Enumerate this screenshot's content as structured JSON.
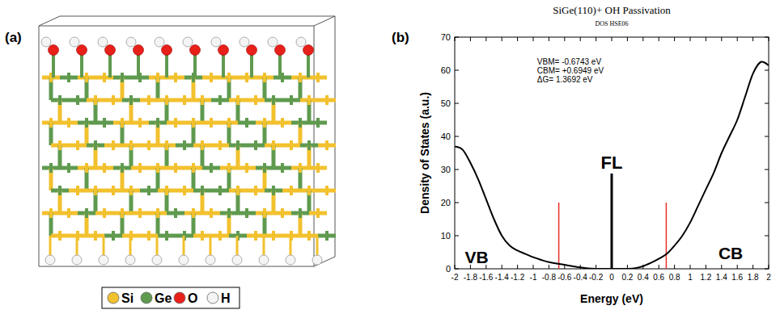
{
  "structure": {
    "label": "(a)",
    "legend": [
      {
        "label": "Si",
        "color": "#f2c12e"
      },
      {
        "label": "Ge",
        "color": "#5f9a4f"
      },
      {
        "label": "O",
        "color": "#e8201a"
      },
      {
        "label": "H",
        "color": "#f4f4f4"
      }
    ]
  },
  "chart_data": {
    "type": "line",
    "panel_label": "(b)",
    "title": "SiGe(110)+ OH Passivation",
    "subtitle": "DOS HSE06",
    "x_label": "Energy (eV)",
    "y_label": "Density of States (a.u.)",
    "x": [
      -2,
      -1.9,
      -1.8,
      -1.7,
      -1.6,
      -1.5,
      -1.4,
      -1.3,
      -1.2,
      -1.1,
      -1,
      -0.9,
      -0.8,
      -0.7,
      -0.6,
      -0.5,
      -0.4,
      -0.3,
      -0.2,
      -0.1,
      0,
      0.1,
      0.2,
      0.3,
      0.4,
      0.5,
      0.6,
      0.7,
      0.8,
      0.9,
      1,
      1.1,
      1.2,
      1.3,
      1.4,
      1.5,
      1.6,
      1.7,
      1.8,
      1.9,
      2
    ],
    "values": [
      37,
      36,
      32,
      27,
      21,
      15,
      10,
      7,
      5.5,
      4.5,
      3.5,
      2.7,
      2,
      1.6,
      1.2,
      0.8,
      0.4,
      0.1,
      0,
      0,
      0,
      0,
      0,
      0.2,
      0.8,
      1.8,
      3,
      4.5,
      7,
      10,
      14,
      19,
      24,
      29,
      35,
      40,
      45,
      52,
      59,
      62.5,
      61.5
    ],
    "color": "#000000",
    "xlim": [
      -2,
      2
    ],
    "xticks": [
      -2,
      -1.8,
      -1.6,
      -1.4,
      -1.2,
      -1,
      -0.8,
      -0.6,
      -0.4,
      -0.2,
      0,
      0.2,
      0.4,
      0.6,
      0.8,
      1,
      1.2,
      1.4,
      1.6,
      1.8,
      2
    ],
    "ylim": [
      0,
      70
    ],
    "yticks": [
      0,
      10,
      20,
      30,
      40,
      50,
      60,
      70
    ],
    "grid": false,
    "annotations": [
      "VBM= -0.6743 eV",
      "CBM= +0.6949 eV",
      "ΔG= 1.3692 eV"
    ],
    "band_labels": [
      "VB",
      "CB"
    ],
    "levels": [
      {
        "x": -0.6743,
        "y": 20,
        "color": "#e8302a"
      },
      {
        "x": 0,
        "y": 28.8,
        "color": "#000000",
        "label": "FL"
      },
      {
        "x": 0.6949,
        "y": 20,
        "color": "#e8302a"
      }
    ]
  }
}
